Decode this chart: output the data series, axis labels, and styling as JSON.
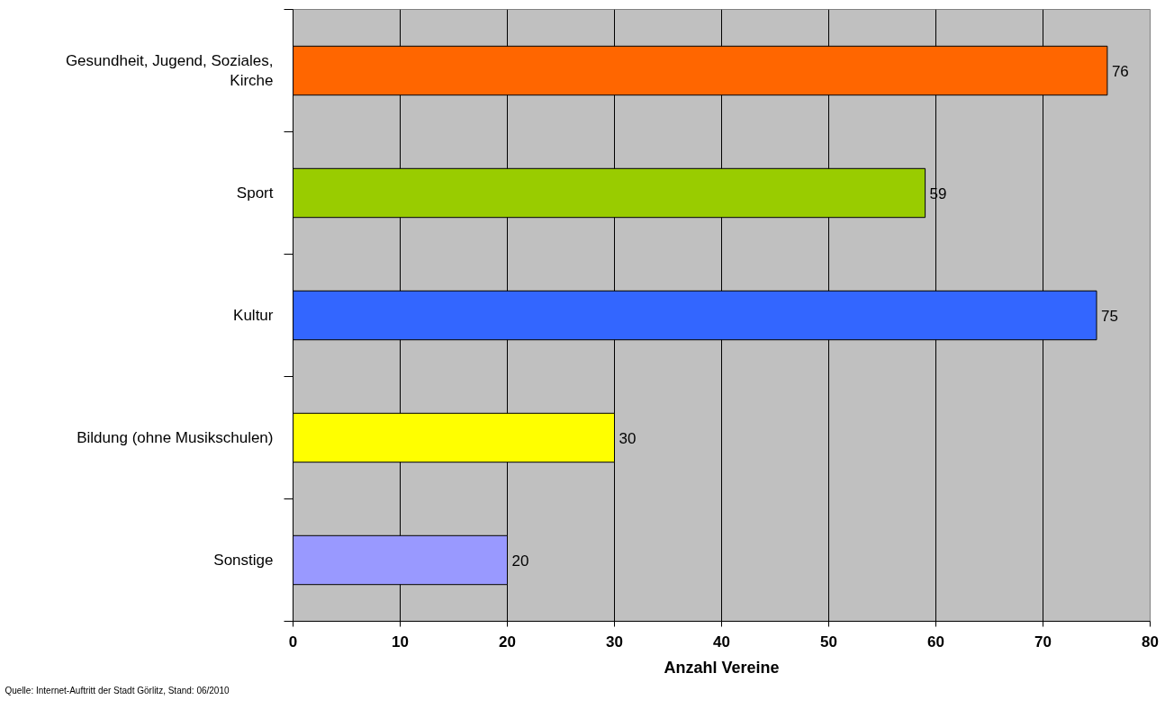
{
  "chart_data": {
    "type": "bar",
    "orientation": "horizontal",
    "categories": [
      "Gesundheit, Jugend, Soziales, Kirche",
      "Sport",
      "Kultur",
      "Bildung (ohne Musikschulen)",
      "Sonstige"
    ],
    "values": [
      76,
      59,
      75,
      30,
      20
    ],
    "colors": [
      "#ff6600",
      "#99cc00",
      "#3366ff",
      "#ffff00",
      "#9999ff"
    ],
    "xlabel": "Anzahl Vereine",
    "xlim": [
      0,
      80
    ],
    "xticks": [
      0,
      10,
      20,
      30,
      40,
      50,
      60,
      70,
      80
    ],
    "grid": "x",
    "data_labels": true,
    "annotations": [
      "Quelle: Internet-Auftritt der Stadt Görlitz, Stand: 06/2010"
    ]
  }
}
